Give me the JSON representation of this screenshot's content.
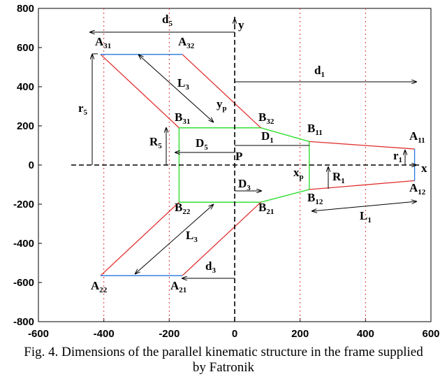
{
  "chart_data": {
    "type": "line",
    "xlim": [
      -600,
      600
    ],
    "ylim": [
      -800,
      800
    ],
    "xticks": [
      -600,
      -400,
      -200,
      0,
      200,
      400,
      600
    ],
    "yticks": [
      -800,
      -600,
      -400,
      -200,
      0,
      200,
      400,
      600,
      800
    ],
    "guides": [
      -400,
      -200,
      200,
      400
    ],
    "guide_color": "#e03030",
    "series": [
      {
        "color": "#22dd22",
        "x": [
          -170,
          80,
          228,
          228,
          80,
          -170,
          -170
        ],
        "values": [
          190,
          190,
          120,
          -125,
          -190,
          -190,
          190
        ]
      },
      {
        "color": "#e03030",
        "x": [
          -410,
          -170
        ],
        "values": [
          565,
          190
        ]
      },
      {
        "color": "#e03030",
        "x": [
          -160,
          80
        ],
        "values": [
          565,
          190
        ]
      },
      {
        "color": "#e03030",
        "x": [
          228,
          550
        ],
        "values": [
          120,
          82
        ]
      },
      {
        "color": "#e03030",
        "x": [
          228,
          550
        ],
        "values": [
          -125,
          -80
        ]
      },
      {
        "color": "#e03030",
        "x": [
          80,
          -160
        ],
        "values": [
          -190,
          -565
        ]
      },
      {
        "color": "#e03030",
        "x": [
          -170,
          -410
        ],
        "values": [
          -190,
          -565
        ]
      },
      {
        "color": "#2277dd",
        "x": [
          -410,
          -160
        ],
        "values": [
          565,
          565
        ]
      },
      {
        "color": "#2277dd",
        "x": [
          -410,
          -160
        ],
        "values": [
          -565,
          -565
        ]
      },
      {
        "color": "#2277dd",
        "x": [
          550,
          550
        ],
        "values": [
          82,
          -80
        ]
      }
    ],
    "annotations": [
      {
        "text": "A",
        "sub": "31"
      },
      {
        "text": "A",
        "sub": "32"
      },
      {
        "text": "B",
        "sub": "31"
      },
      {
        "text": "B",
        "sub": "32"
      },
      {
        "text": "B",
        "sub": "11"
      },
      {
        "text": "A",
        "sub": "11"
      },
      {
        "text": "A",
        "sub": "12"
      },
      {
        "text": "B",
        "sub": "12"
      },
      {
        "text": "B",
        "sub": "21"
      },
      {
        "text": "B",
        "sub": "22"
      },
      {
        "text": "A",
        "sub": "22"
      },
      {
        "text": "A",
        "sub": "21"
      },
      {
        "text": "d",
        "sub": "5"
      },
      {
        "text": "d",
        "sub": "1"
      },
      {
        "text": "d",
        "sub": "3"
      },
      {
        "text": "D",
        "sub": "5"
      },
      {
        "text": "D",
        "sub": "1"
      },
      {
        "text": "D",
        "sub": "3"
      },
      {
        "text": "r",
        "sub": "5"
      },
      {
        "text": "R",
        "sub": "5"
      },
      {
        "text": "R",
        "sub": "1"
      },
      {
        "text": "r",
        "sub": "1"
      },
      {
        "text": "L",
        "sub": "3"
      },
      {
        "text": "L",
        "sub": "3"
      },
      {
        "text": "L",
        "sub": "1"
      },
      {
        "text": "x",
        "sub": "p"
      },
      {
        "text": "y",
        "sub": "p"
      },
      {
        "text": "P"
      },
      {
        "text": "y"
      },
      {
        "text": "x"
      }
    ],
    "caption": "Fig. 4. Dimensions of the parallel kinematic structure in the frame supplied by Fatronik"
  }
}
